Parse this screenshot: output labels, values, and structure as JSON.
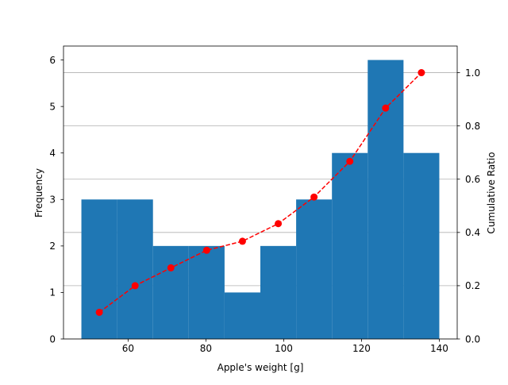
{
  "chart_data": {
    "type": "bar",
    "xlabel": "Apple's weight [g]",
    "ylabel": "Frequency",
    "y2label": "Cumulative Ratio",
    "xlim": [
      43.4,
      144.6
    ],
    "ylim": [
      0,
      6.3
    ],
    "y2lim": [
      0,
      1.1
    ],
    "xticks": [
      60,
      80,
      100,
      120,
      140
    ],
    "yticks": [
      0,
      1,
      2,
      3,
      4,
      5,
      6
    ],
    "y2ticks": [
      0.0,
      0.2,
      0.4,
      0.6,
      0.8,
      1.0
    ],
    "grid": "horizontal lines on secondary axis",
    "histogram": {
      "bin_edges": [
        48.0,
        57.2,
        66.4,
        75.6,
        84.8,
        94.0,
        103.2,
        112.4,
        121.6,
        130.8,
        140.0
      ],
      "counts": [
        3,
        3,
        2,
        2,
        1,
        2,
        3,
        4,
        6,
        4
      ],
      "color": "#1f77b4"
    },
    "cumulative": {
      "x": [
        52.6,
        61.8,
        71.0,
        80.2,
        89.4,
        98.6,
        107.8,
        117.0,
        126.2,
        135.4
      ],
      "y": [
        0.1,
        0.2,
        0.267,
        0.333,
        0.367,
        0.433,
        0.533,
        0.667,
        0.867,
        1.0
      ],
      "color": "#ff0000",
      "line_style": "dashed",
      "marker": "circle"
    }
  }
}
